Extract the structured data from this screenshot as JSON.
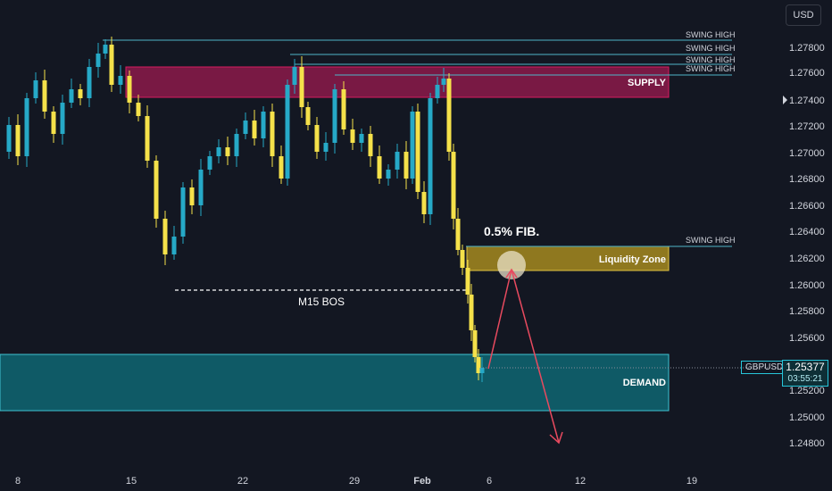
{
  "currency": "USD",
  "symbol": "GBPUSD",
  "last_price": "1.25377",
  "countdown": "03:55:21",
  "colors": {
    "background": "#131722",
    "bull_candle": "#26a9c7",
    "bear_candle": "#f5e14a",
    "supply_zone": "#c2185b",
    "demand_zone": "#0f6b78",
    "liquidity_zone": "#c9a227",
    "projection_arrow": "#e84a5f",
    "swing_line": "#4fb6c8"
  },
  "chart_data": {
    "type": "candlestick",
    "symbol": "GBPUSD",
    "ylim": [
      1.247,
      1.2795
    ],
    "price_ticks": [
      "1.27800",
      "1.27600",
      "1.27400",
      "1.27200",
      "1.27000",
      "1.26800",
      "1.26600",
      "1.26400",
      "1.26200",
      "1.26000",
      "1.25800",
      "1.25600",
      "1.25200",
      "1.25000",
      "1.24800"
    ],
    "date_ticks": [
      "8",
      "15",
      "22",
      "29",
      "Feb",
      "6",
      "12",
      "19"
    ],
    "zones": {
      "supply": {
        "label": "SUPPLY",
        "top": 1.2765,
        "bottom": 1.2742
      },
      "liquidity": {
        "label": "Liquidity Zone",
        "top": 1.263,
        "bottom": 1.2613
      },
      "demand": {
        "label": "DEMAND",
        "top": 1.2548,
        "bottom": 1.2506
      }
    },
    "swing_labels": [
      "SWING HIGH",
      "SWING HIGH",
      "SWING HIGH",
      "SWING HIGH",
      "SWING HIGH"
    ],
    "annotations": {
      "fib": "0.5% FIB.",
      "bos": "M15 BOS"
    },
    "bos_level": 1.2597,
    "last_price": 1.25377
  }
}
